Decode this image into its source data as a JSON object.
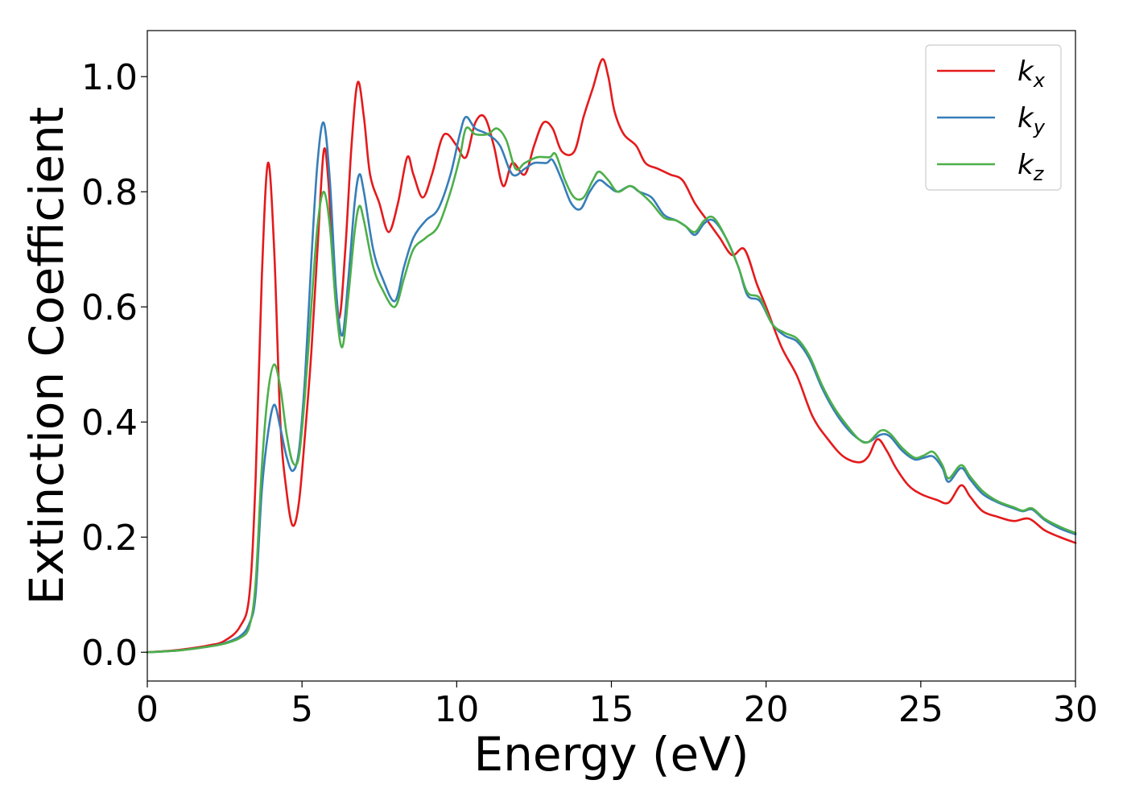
{
  "chart_data": {
    "type": "line",
    "title": "",
    "xlabel": "Energy (eV)",
    "ylabel": "Extinction Coefficient",
    "xlim": [
      0,
      30
    ],
    "ylim": [
      -0.05,
      1.08
    ],
    "xticks": [
      0,
      5,
      10,
      15,
      20,
      25,
      30
    ],
    "yticks": [
      0.0,
      0.2,
      0.4,
      0.6,
      0.8,
      1.0
    ],
    "xtick_labels": [
      "0",
      "5",
      "10",
      "15",
      "20",
      "25",
      "30"
    ],
    "ytick_labels": [
      "0.0",
      "0.2",
      "0.4",
      "0.6",
      "0.8",
      "1.0"
    ],
    "grid": false,
    "legend_position": "top-right",
    "series": [
      {
        "name": "k_x",
        "label_main": "k",
        "label_sub": "x",
        "color": "#e41a1c",
        "points": [
          [
            0,
            0.0
          ],
          [
            1,
            0.004
          ],
          [
            2,
            0.012
          ],
          [
            2.5,
            0.02
          ],
          [
            3,
            0.045
          ],
          [
            3.3,
            0.1
          ],
          [
            3.5,
            0.3
          ],
          [
            3.7,
            0.65
          ],
          [
            3.9,
            0.85
          ],
          [
            4.1,
            0.7
          ],
          [
            4.3,
            0.4
          ],
          [
            4.5,
            0.28
          ],
          [
            4.7,
            0.22
          ],
          [
            4.9,
            0.26
          ],
          [
            5.1,
            0.38
          ],
          [
            5.3,
            0.52
          ],
          [
            5.5,
            0.7
          ],
          [
            5.7,
            0.87
          ],
          [
            5.85,
            0.82
          ],
          [
            6.0,
            0.68
          ],
          [
            6.2,
            0.58
          ],
          [
            6.4,
            0.7
          ],
          [
            6.6,
            0.88
          ],
          [
            6.8,
            0.99
          ],
          [
            7.0,
            0.93
          ],
          [
            7.2,
            0.83
          ],
          [
            7.5,
            0.78
          ],
          [
            7.8,
            0.73
          ],
          [
            8.1,
            0.78
          ],
          [
            8.4,
            0.86
          ],
          [
            8.6,
            0.83
          ],
          [
            8.9,
            0.79
          ],
          [
            9.2,
            0.83
          ],
          [
            9.5,
            0.89
          ],
          [
            9.7,
            0.9
          ],
          [
            10.0,
            0.88
          ],
          [
            10.3,
            0.86
          ],
          [
            10.6,
            0.92
          ],
          [
            10.9,
            0.93
          ],
          [
            11.2,
            0.88
          ],
          [
            11.5,
            0.81
          ],
          [
            11.8,
            0.85
          ],
          [
            12.2,
            0.83
          ],
          [
            12.5,
            0.88
          ],
          [
            12.8,
            0.92
          ],
          [
            13.1,
            0.91
          ],
          [
            13.4,
            0.87
          ],
          [
            13.8,
            0.87
          ],
          [
            14.1,
            0.93
          ],
          [
            14.4,
            0.98
          ],
          [
            14.7,
            1.03
          ],
          [
            14.9,
            1.0
          ],
          [
            15.1,
            0.94
          ],
          [
            15.4,
            0.9
          ],
          [
            15.8,
            0.88
          ],
          [
            16.1,
            0.85
          ],
          [
            16.5,
            0.84
          ],
          [
            16.9,
            0.83
          ],
          [
            17.3,
            0.82
          ],
          [
            17.7,
            0.78
          ],
          [
            18.1,
            0.75
          ],
          [
            18.5,
            0.72
          ],
          [
            18.9,
            0.69
          ],
          [
            19.3,
            0.7
          ],
          [
            19.7,
            0.64
          ],
          [
            20.0,
            0.6
          ],
          [
            20.5,
            0.53
          ],
          [
            21.0,
            0.48
          ],
          [
            21.5,
            0.41
          ],
          [
            22.0,
            0.37
          ],
          [
            22.5,
            0.34
          ],
          [
            23.0,
            0.33
          ],
          [
            23.3,
            0.34
          ],
          [
            23.6,
            0.37
          ],
          [
            23.9,
            0.35
          ],
          [
            24.2,
            0.32
          ],
          [
            24.6,
            0.29
          ],
          [
            25.0,
            0.275
          ],
          [
            25.5,
            0.265
          ],
          [
            25.9,
            0.26
          ],
          [
            26.3,
            0.29
          ],
          [
            26.6,
            0.27
          ],
          [
            27.0,
            0.245
          ],
          [
            27.5,
            0.235
          ],
          [
            28.0,
            0.228
          ],
          [
            28.5,
            0.232
          ],
          [
            29.0,
            0.212
          ],
          [
            29.5,
            0.2
          ],
          [
            30.0,
            0.19
          ]
        ]
      },
      {
        "name": "k_y",
        "label_main": "k",
        "label_sub": "y",
        "color": "#377eb8",
        "points": [
          [
            0,
            0.0
          ],
          [
            1,
            0.003
          ],
          [
            2,
            0.01
          ],
          [
            2.5,
            0.016
          ],
          [
            3,
            0.028
          ],
          [
            3.3,
            0.05
          ],
          [
            3.5,
            0.1
          ],
          [
            3.7,
            0.28
          ],
          [
            3.9,
            0.38
          ],
          [
            4.1,
            0.43
          ],
          [
            4.3,
            0.39
          ],
          [
            4.5,
            0.34
          ],
          [
            4.7,
            0.315
          ],
          [
            4.9,
            0.35
          ],
          [
            5.1,
            0.48
          ],
          [
            5.3,
            0.68
          ],
          [
            5.5,
            0.85
          ],
          [
            5.7,
            0.92
          ],
          [
            5.9,
            0.82
          ],
          [
            6.1,
            0.63
          ],
          [
            6.3,
            0.55
          ],
          [
            6.5,
            0.65
          ],
          [
            6.7,
            0.78
          ],
          [
            6.85,
            0.83
          ],
          [
            7.0,
            0.8
          ],
          [
            7.3,
            0.7
          ],
          [
            7.6,
            0.65
          ],
          [
            8.0,
            0.61
          ],
          [
            8.3,
            0.67
          ],
          [
            8.6,
            0.72
          ],
          [
            9.0,
            0.75
          ],
          [
            9.4,
            0.77
          ],
          [
            9.8,
            0.83
          ],
          [
            10.1,
            0.9
          ],
          [
            10.3,
            0.93
          ],
          [
            10.6,
            0.91
          ],
          [
            11.0,
            0.9
          ],
          [
            11.4,
            0.88
          ],
          [
            11.8,
            0.83
          ],
          [
            12.2,
            0.84
          ],
          [
            12.5,
            0.85
          ],
          [
            12.9,
            0.85
          ],
          [
            13.1,
            0.855
          ],
          [
            13.4,
            0.82
          ],
          [
            13.7,
            0.78
          ],
          [
            14.0,
            0.77
          ],
          [
            14.3,
            0.8
          ],
          [
            14.6,
            0.82
          ],
          [
            14.9,
            0.81
          ],
          [
            15.2,
            0.8
          ],
          [
            15.6,
            0.81
          ],
          [
            15.9,
            0.8
          ],
          [
            16.3,
            0.79
          ],
          [
            16.7,
            0.76
          ],
          [
            17.1,
            0.75
          ],
          [
            17.4,
            0.74
          ],
          [
            17.7,
            0.725
          ],
          [
            18.0,
            0.745
          ],
          [
            18.3,
            0.75
          ],
          [
            18.7,
            0.72
          ],
          [
            19.1,
            0.67
          ],
          [
            19.4,
            0.62
          ],
          [
            19.8,
            0.61
          ],
          [
            20.2,
            0.57
          ],
          [
            20.6,
            0.55
          ],
          [
            21.0,
            0.54
          ],
          [
            21.4,
            0.51
          ],
          [
            21.8,
            0.46
          ],
          [
            22.2,
            0.42
          ],
          [
            22.6,
            0.39
          ],
          [
            23.0,
            0.37
          ],
          [
            23.3,
            0.365
          ],
          [
            23.7,
            0.378
          ],
          [
            24.0,
            0.375
          ],
          [
            24.4,
            0.35
          ],
          [
            24.8,
            0.335
          ],
          [
            25.1,
            0.338
          ],
          [
            25.4,
            0.34
          ],
          [
            25.7,
            0.32
          ],
          [
            25.9,
            0.296
          ],
          [
            26.3,
            0.32
          ],
          [
            26.6,
            0.3
          ],
          [
            27.0,
            0.275
          ],
          [
            27.5,
            0.26
          ],
          [
            28.0,
            0.25
          ],
          [
            28.3,
            0.245
          ],
          [
            28.6,
            0.248
          ],
          [
            29.0,
            0.23
          ],
          [
            29.5,
            0.215
          ],
          [
            30.0,
            0.205
          ]
        ]
      },
      {
        "name": "k_z",
        "label_main": "k",
        "label_sub": "z",
        "color": "#4daf4a",
        "points": [
          [
            0,
            0.0
          ],
          [
            1,
            0.003
          ],
          [
            2,
            0.01
          ],
          [
            2.5,
            0.015
          ],
          [
            3,
            0.025
          ],
          [
            3.3,
            0.045
          ],
          [
            3.5,
            0.12
          ],
          [
            3.7,
            0.32
          ],
          [
            3.9,
            0.45
          ],
          [
            4.1,
            0.5
          ],
          [
            4.3,
            0.46
          ],
          [
            4.5,
            0.38
          ],
          [
            4.7,
            0.33
          ],
          [
            4.9,
            0.34
          ],
          [
            5.1,
            0.45
          ],
          [
            5.3,
            0.6
          ],
          [
            5.5,
            0.74
          ],
          [
            5.7,
            0.8
          ],
          [
            5.9,
            0.74
          ],
          [
            6.1,
            0.6
          ],
          [
            6.3,
            0.53
          ],
          [
            6.5,
            0.62
          ],
          [
            6.7,
            0.73
          ],
          [
            6.85,
            0.775
          ],
          [
            7.0,
            0.75
          ],
          [
            7.3,
            0.67
          ],
          [
            7.6,
            0.63
          ],
          [
            8.0,
            0.6
          ],
          [
            8.3,
            0.65
          ],
          [
            8.6,
            0.7
          ],
          [
            9.0,
            0.72
          ],
          [
            9.4,
            0.74
          ],
          [
            9.8,
            0.8
          ],
          [
            10.1,
            0.86
          ],
          [
            10.3,
            0.91
          ],
          [
            10.6,
            0.9
          ],
          [
            11.0,
            0.9
          ],
          [
            11.3,
            0.91
          ],
          [
            11.6,
            0.89
          ],
          [
            11.9,
            0.84
          ],
          [
            12.2,
            0.85
          ],
          [
            12.6,
            0.86
          ],
          [
            13.0,
            0.86
          ],
          [
            13.2,
            0.865
          ],
          [
            13.5,
            0.82
          ],
          [
            13.8,
            0.79
          ],
          [
            14.1,
            0.79
          ],
          [
            14.4,
            0.82
          ],
          [
            14.6,
            0.835
          ],
          [
            14.9,
            0.82
          ],
          [
            15.2,
            0.8
          ],
          [
            15.6,
            0.81
          ],
          [
            15.9,
            0.8
          ],
          [
            16.3,
            0.78
          ],
          [
            16.7,
            0.755
          ],
          [
            17.1,
            0.75
          ],
          [
            17.4,
            0.74
          ],
          [
            17.7,
            0.73
          ],
          [
            18.0,
            0.75
          ],
          [
            18.3,
            0.755
          ],
          [
            18.7,
            0.72
          ],
          [
            19.1,
            0.67
          ],
          [
            19.4,
            0.625
          ],
          [
            19.8,
            0.615
          ],
          [
            20.2,
            0.57
          ],
          [
            20.6,
            0.555
          ],
          [
            21.0,
            0.545
          ],
          [
            21.4,
            0.515
          ],
          [
            21.8,
            0.465
          ],
          [
            22.2,
            0.425
          ],
          [
            22.6,
            0.395
          ],
          [
            23.0,
            0.37
          ],
          [
            23.3,
            0.365
          ],
          [
            23.7,
            0.385
          ],
          [
            24.0,
            0.38
          ],
          [
            24.4,
            0.355
          ],
          [
            24.8,
            0.338
          ],
          [
            25.1,
            0.342
          ],
          [
            25.4,
            0.348
          ],
          [
            25.7,
            0.325
          ],
          [
            25.9,
            0.302
          ],
          [
            26.3,
            0.325
          ],
          [
            26.6,
            0.305
          ],
          [
            27.0,
            0.28
          ],
          [
            27.5,
            0.262
          ],
          [
            28.0,
            0.252
          ],
          [
            28.3,
            0.246
          ],
          [
            28.6,
            0.25
          ],
          [
            29.0,
            0.232
          ],
          [
            29.5,
            0.218
          ],
          [
            30.0,
            0.207
          ]
        ]
      }
    ]
  }
}
